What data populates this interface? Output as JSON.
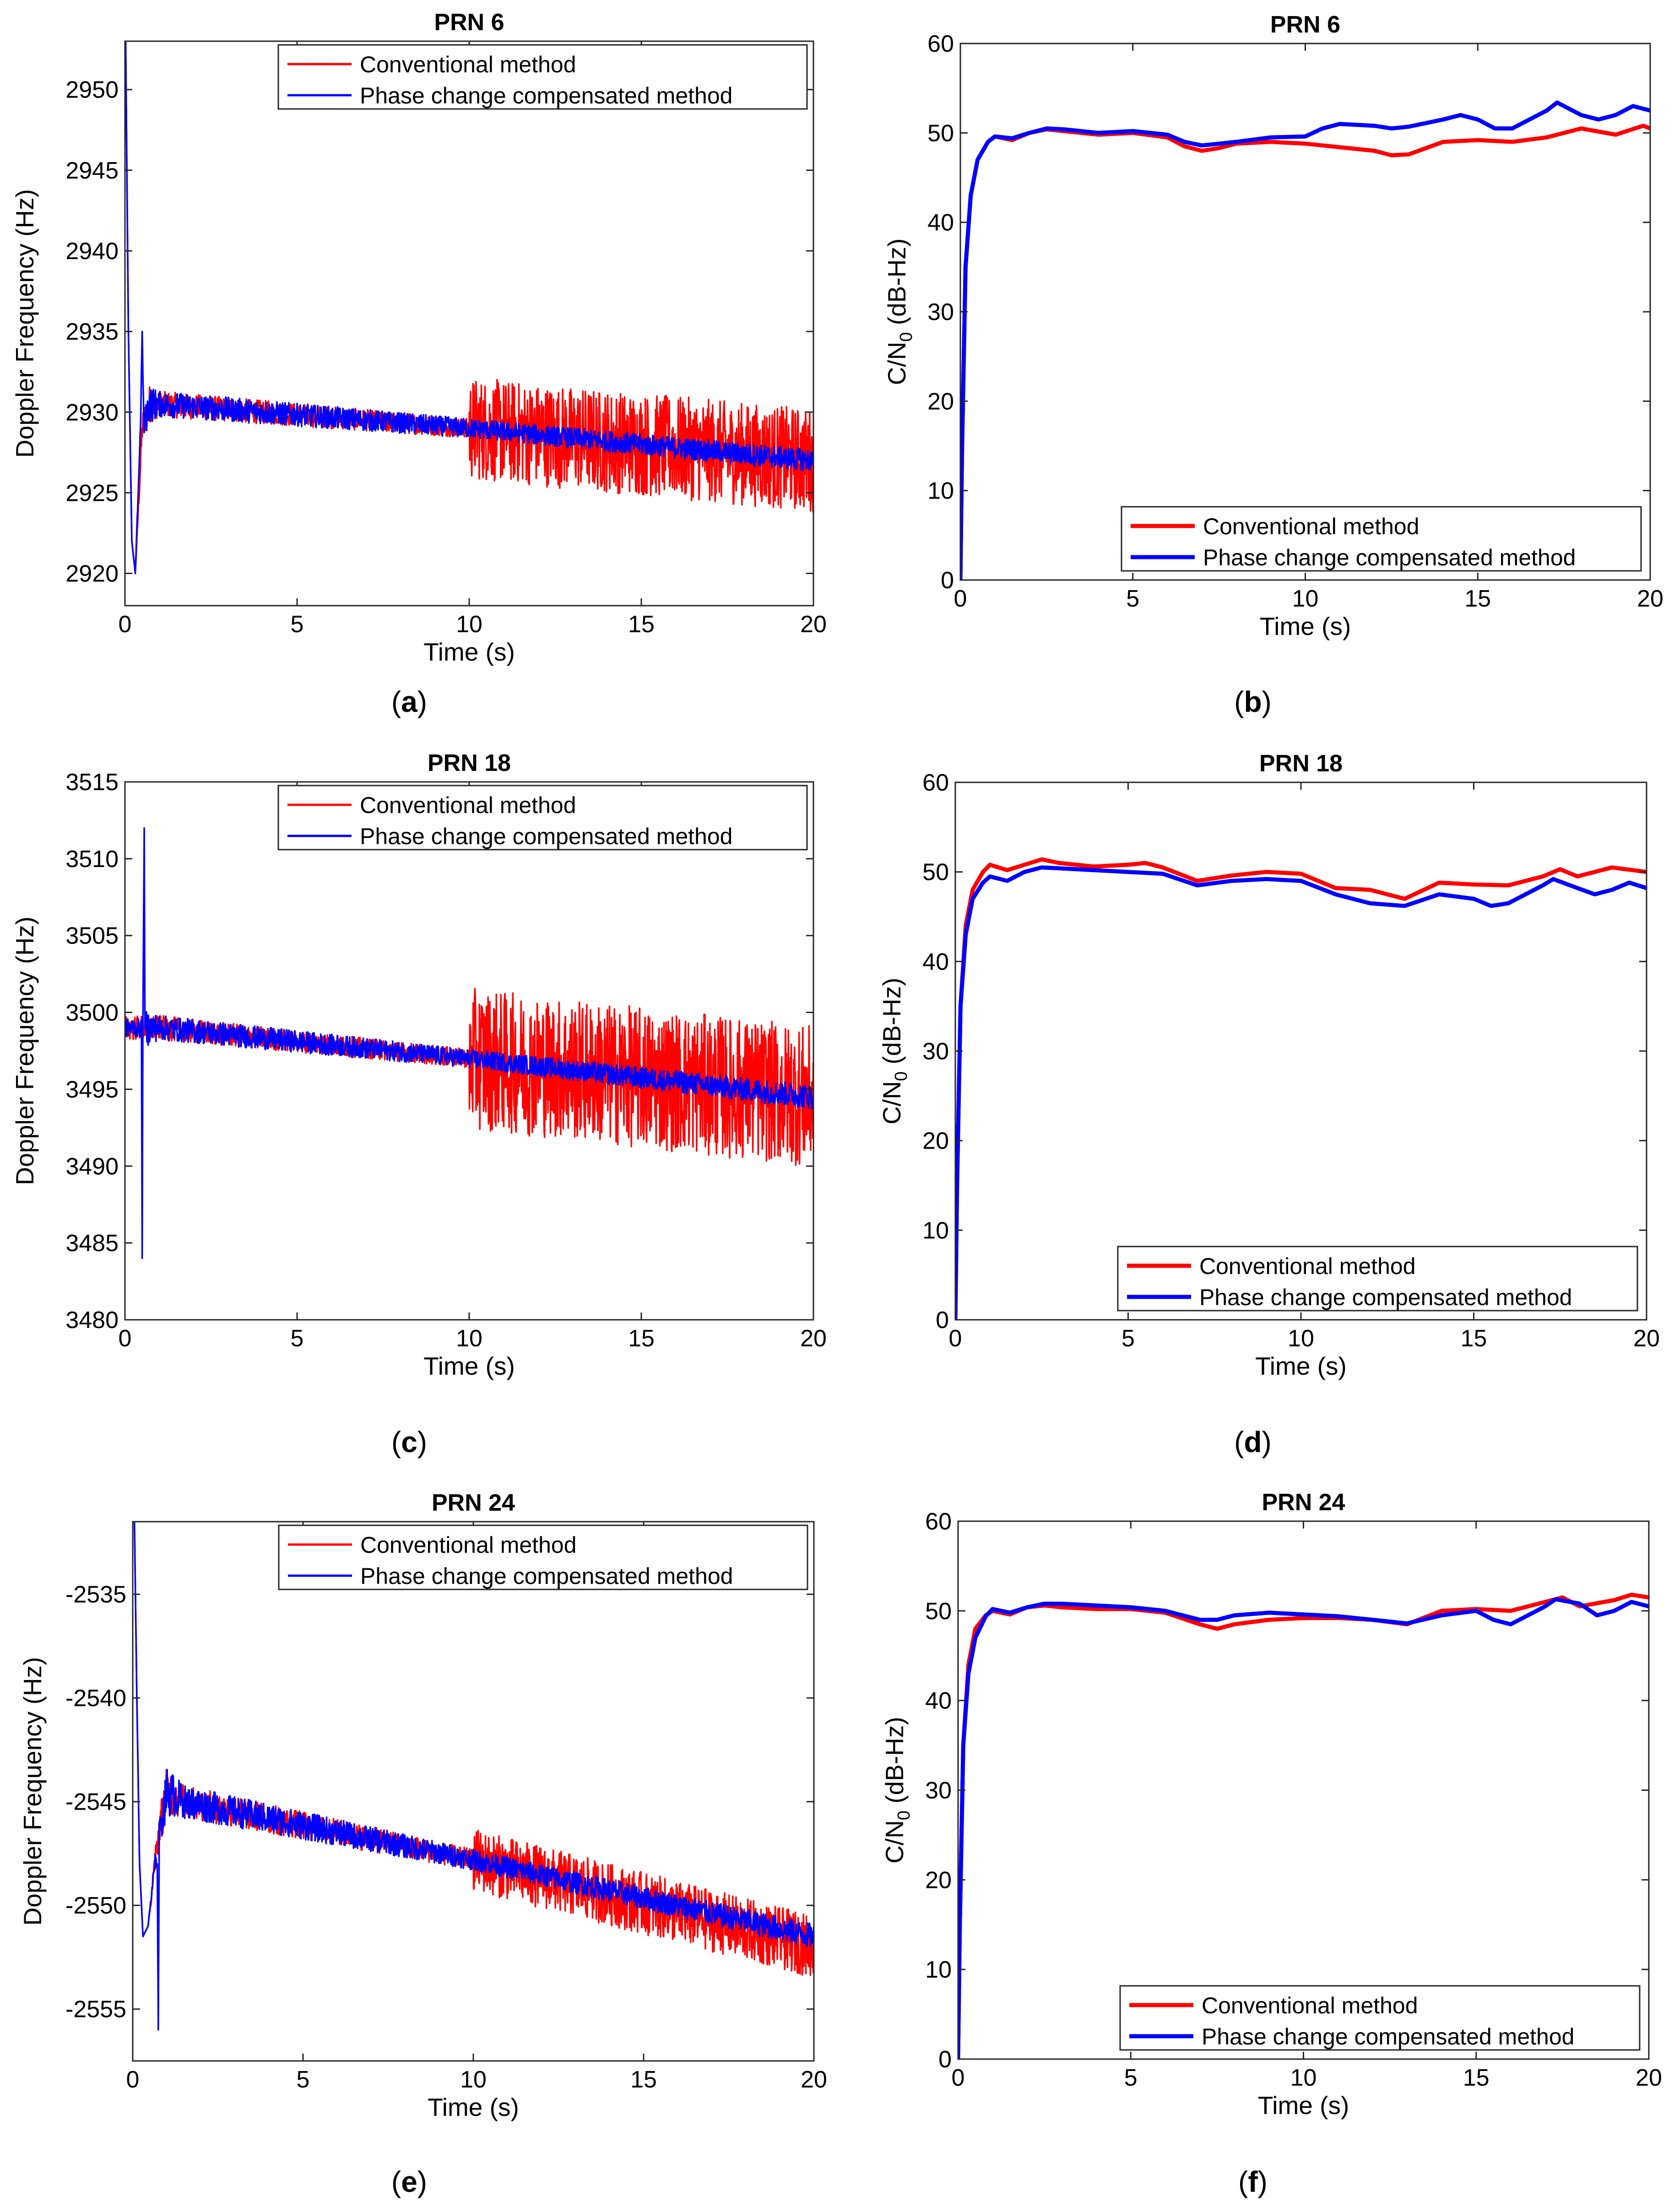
{
  "colors": {
    "conventional": "#ff0000",
    "compensated": "#0000ff",
    "axis": "#262626"
  },
  "chart_data": [
    {
      "id": "a",
      "subfigure_label": "(a)",
      "type": "line",
      "title": "PRN  6",
      "xlabel": "Time (s)",
      "ylabel": "Doppler Frequency (Hz)",
      "xlim": [
        0,
        20
      ],
      "ylim": [
        2918,
        2953
      ],
      "xticks": [
        0,
        5,
        10,
        15,
        20
      ],
      "yticks": [
        2920,
        2925,
        2930,
        2935,
        2940,
        2945,
        2950
      ],
      "legend_position": "top-right",
      "legend_style": "thin",
      "series": [
        {
          "name": "Conventional method",
          "color": "#ff0000",
          "x": [
            0.02,
            0.1,
            0.2,
            0.3,
            0.5,
            0.7,
            1.0,
            10,
            20
          ],
          "y": [
            2953,
            2935,
            2922,
            2920,
            2929,
            2930.5,
            2930.5,
            2929,
            2927
          ],
          "noise": [
            0,
            0,
            0,
            0,
            1,
            1.2,
            0.8,
            0.6,
            0.6
          ],
          "noise_after": {
            "x": 10,
            "amplitude": 3.2
          }
        },
        {
          "name": "Phase change compensated method",
          "color": "#0000ff",
          "x": [
            0.02,
            0.1,
            0.2,
            0.3,
            0.45,
            0.5,
            0.55,
            0.7,
            1.0,
            10,
            20
          ],
          "y": [
            2953,
            2935,
            2922,
            2920,
            2929,
            2935,
            2929,
            2930.5,
            2930.5,
            2929,
            2927
          ],
          "noise": [
            0,
            0,
            0,
            0,
            0.5,
            0,
            0.8,
            1.2,
            0.8,
            0.6,
            0.7
          ]
        }
      ]
    },
    {
      "id": "b",
      "subfigure_label": "(b)",
      "type": "line",
      "title": "PRN  6",
      "xlabel": "Time (s)",
      "ylabel": "C/N0 (dB-Hz)",
      "ylabel_main": "C/N",
      "ylabel_sub": "0",
      "ylabel_rest": " (dB-Hz)",
      "xlim": [
        0,
        20
      ],
      "ylim": [
        0,
        60
      ],
      "xticks": [
        0,
        5,
        10,
        15,
        20
      ],
      "yticks": [
        0,
        10,
        20,
        30,
        40,
        50,
        60
      ],
      "legend_position": "bottom-right",
      "legend_style": "thick",
      "series": [
        {
          "name": "Conventional method",
          "color": "#ff0000",
          "x": [
            0,
            0.05,
            0.15,
            0.3,
            0.5,
            0.8,
            1.0,
            1.5,
            2.0,
            2.5,
            3.0,
            4.0,
            5.0,
            6.0,
            6.5,
            7.0,
            7.5,
            8.0,
            9.0,
            10.0,
            11.0,
            12.0,
            12.5,
            13.0,
            14.0,
            15.0,
            16.0,
            17.0,
            18.0,
            19.0,
            19.8,
            20.0
          ],
          "y": [
            0,
            15,
            35,
            43,
            47,
            49,
            49.6,
            49.2,
            50,
            50.4,
            50.2,
            49.8,
            50.0,
            49.5,
            48.5,
            48.0,
            48.3,
            48.8,
            49.0,
            48.8,
            48.4,
            48.0,
            47.5,
            47.6,
            49.0,
            49.2,
            49.0,
            49.5,
            50.5,
            49.8,
            50.8,
            50.5
          ]
        },
        {
          "name": "Phase change compensated method",
          "color": "#0000ff",
          "x": [
            0,
            0.05,
            0.15,
            0.3,
            0.5,
            0.8,
            1.0,
            1.5,
            2.0,
            2.5,
            3.0,
            4.0,
            5.0,
            6.0,
            6.5,
            7.0,
            7.5,
            8.0,
            9.0,
            10.0,
            10.5,
            11.0,
            12.0,
            12.5,
            13.0,
            14.0,
            14.5,
            15.0,
            15.5,
            16.0,
            17.0,
            17.3,
            18.0,
            18.5,
            19.0,
            19.5,
            20.0
          ],
          "y": [
            0,
            15,
            35,
            43,
            47,
            49,
            49.6,
            49.4,
            50,
            50.5,
            50.4,
            50.0,
            50.2,
            49.8,
            49.0,
            48.6,
            48.8,
            49.0,
            49.5,
            49.6,
            50.5,
            51.0,
            50.8,
            50.5,
            50.7,
            51.5,
            52.0,
            51.5,
            50.5,
            50.5,
            52.5,
            53.4,
            52.0,
            51.5,
            52.0,
            53.0,
            52.5
          ]
        }
      ]
    },
    {
      "id": "c",
      "subfigure_label": "(c)",
      "type": "line",
      "title": "PRN  18",
      "xlabel": "Time (s)",
      "ylabel": "Doppler Frequency (Hz)",
      "xlim": [
        0,
        20
      ],
      "ylim": [
        3480,
        3515
      ],
      "xticks": [
        0,
        5,
        10,
        15,
        20
      ],
      "yticks": [
        3480,
        3485,
        3490,
        3495,
        3500,
        3505,
        3510,
        3515
      ],
      "legend_position": "top-right",
      "legend_style": "thin",
      "series": [
        {
          "name": "Conventional method",
          "color": "#ff0000",
          "x": [
            0,
            0.5,
            1.0,
            10,
            20
          ],
          "y": [
            3499,
            3499,
            3499,
            3497,
            3494.5
          ],
          "noise": [
            0.8,
            0.8,
            0.8,
            0.6,
            0.6
          ],
          "noise_after": {
            "x": 10,
            "amplitude": 4.6
          }
        },
        {
          "name": "Phase change compensated method",
          "color": "#0000ff",
          "x": [
            0,
            0.48,
            0.5,
            0.52,
            0.56,
            0.58,
            0.62,
            1.0,
            10,
            20
          ],
          "y": [
            3499,
            3499,
            3484,
            3499,
            3512,
            3499,
            3499,
            3499,
            3497,
            3494.5
          ],
          "noise": [
            0.6,
            0.6,
            0,
            0,
            0,
            0,
            1.2,
            0.8,
            0.6,
            0.8
          ]
        }
      ]
    },
    {
      "id": "d",
      "subfigure_label": "(d)",
      "type": "line",
      "title": "PRN  18",
      "xlabel": "Time (s)",
      "ylabel": "C/N0 (dB-Hz)",
      "ylabel_main": "C/N",
      "ylabel_sub": "0",
      "ylabel_rest": " (dB-Hz)",
      "xlim": [
        0,
        20
      ],
      "ylim": [
        0,
        60
      ],
      "xticks": [
        0,
        5,
        10,
        15,
        20
      ],
      "yticks": [
        0,
        10,
        20,
        30,
        40,
        50,
        60
      ],
      "legend_position": "bottom-right",
      "legend_style": "thick",
      "series": [
        {
          "name": "Conventional method",
          "color": "#ff0000",
          "x": [
            0,
            0.05,
            0.15,
            0.3,
            0.5,
            0.8,
            1.0,
            1.5,
            2.0,
            2.5,
            3.0,
            4.0,
            5.0,
            5.5,
            6.0,
            7.0,
            8.0,
            9.0,
            10.0,
            11.0,
            12.0,
            13.0,
            14.0,
            15.0,
            16.0,
            17.0,
            17.5,
            18.0,
            19.0,
            20.0
          ],
          "y": [
            0,
            15,
            35,
            44,
            48,
            50,
            50.8,
            50.2,
            50.8,
            51.4,
            51.0,
            50.6,
            50.8,
            51.0,
            50.5,
            49.0,
            49.6,
            50.0,
            49.8,
            48.2,
            48.0,
            47.0,
            48.8,
            48.6,
            48.5,
            49.5,
            50.3,
            49.5,
            50.5,
            50.0
          ]
        },
        {
          "name": "Phase change compensated method",
          "color": "#0000ff",
          "x": [
            0,
            0.05,
            0.15,
            0.3,
            0.5,
            0.8,
            1.0,
            1.5,
            2.0,
            2.5,
            3.0,
            4.0,
            5.0,
            6.0,
            7.0,
            8.0,
            9.0,
            10.0,
            11.0,
            12.0,
            13.0,
            14.0,
            15.0,
            15.5,
            16.0,
            17.0,
            17.3,
            18.0,
            18.5,
            19.0,
            19.5,
            20.0
          ],
          "y": [
            0,
            15,
            35,
            43,
            47,
            48.8,
            49.5,
            49.0,
            50.0,
            50.5,
            50.4,
            50.2,
            50.0,
            49.8,
            48.5,
            49.0,
            49.2,
            49.0,
            47.5,
            46.5,
            46.2,
            47.5,
            47.0,
            46.2,
            46.5,
            48.5,
            49.2,
            48.2,
            47.5,
            48.0,
            48.8,
            48.2
          ]
        }
      ]
    },
    {
      "id": "e",
      "subfigure_label": "(e)",
      "type": "line",
      "title": "PRN  24",
      "xlabel": "Time (s)",
      "ylabel": "Doppler Frequency (Hz)",
      "xlim": [
        0,
        20
      ],
      "ylim": [
        -2557.5,
        -2531.5
      ],
      "xticks": [
        0,
        5,
        10,
        15,
        20
      ],
      "yticks": [
        -2555,
        -2550,
        -2545,
        -2540,
        -2535
      ],
      "legend_position": "top-right",
      "legend_style": "thin",
      "series": [
        {
          "name": "Conventional method",
          "color": "#ff0000",
          "x": [
            0.05,
            0.12,
            0.2,
            0.3,
            0.45,
            0.65,
            0.8,
            1.0,
            1.5,
            10,
            20
          ],
          "y": [
            -2531.5,
            -2540,
            -2548,
            -2551.5,
            -2551,
            -2548,
            -2546,
            -2544.5,
            -2545,
            -2547.8,
            -2552
          ],
          "noise": [
            0,
            0,
            0,
            0,
            0,
            0.6,
            0.8,
            1.2,
            0.8,
            0.5,
            0.6
          ],
          "noise_after": {
            "x": 10,
            "amplitude": 1.5
          }
        },
        {
          "name": "Phase change compensated method",
          "color": "#0000ff",
          "x": [
            0.05,
            0.12,
            0.2,
            0.3,
            0.45,
            0.65,
            0.72,
            0.75,
            0.78,
            0.85,
            1.0,
            1.5,
            10,
            20
          ],
          "y": [
            -2531.5,
            -2540,
            -2548,
            -2551.5,
            -2551,
            -2548,
            -2548,
            -2556,
            -2546,
            -2546,
            -2544.5,
            -2545,
            -2547.8,
            -2551.5
          ],
          "noise": [
            0,
            0,
            0,
            0,
            0,
            0.6,
            0,
            0,
            0,
            0.8,
            1.2,
            0.8,
            0.5,
            0.6
          ]
        }
      ]
    },
    {
      "id": "f",
      "subfigure_label": "(f)",
      "type": "line",
      "title": "PRN  24",
      "xlabel": "Time (s)",
      "ylabel": "C/N0 (dB-Hz)",
      "ylabel_main": "C/N",
      "ylabel_sub": "0",
      "ylabel_rest": " (dB-Hz)",
      "xlim": [
        0,
        20
      ],
      "ylim": [
        0,
        60
      ],
      "xticks": [
        0,
        5,
        10,
        15,
        20
      ],
      "yticks": [
        0,
        10,
        20,
        30,
        40,
        50,
        60
      ],
      "legend_position": "bottom-right",
      "legend_style": "thick",
      "series": [
        {
          "name": "Conventional method",
          "color": "#ff0000",
          "x": [
            0,
            0.05,
            0.15,
            0.3,
            0.5,
            0.8,
            1.0,
            1.5,
            2.0,
            2.5,
            3.0,
            4.0,
            5.0,
            6.0,
            7.0,
            7.5,
            8.0,
            9.0,
            10.0,
            11.0,
            12.0,
            13.0,
            14.0,
            15.0,
            16.0,
            17.0,
            17.5,
            18.0,
            19.0,
            19.5,
            20.0
          ],
          "y": [
            0,
            15,
            35,
            44,
            48,
            49.5,
            50.0,
            49.6,
            50.4,
            50.6,
            50.4,
            50.2,
            50.2,
            49.8,
            48.5,
            48.0,
            48.5,
            49.0,
            49.2,
            49.2,
            49.0,
            48.5,
            50.0,
            50.2,
            50.0,
            51.0,
            51.5,
            50.5,
            51.2,
            51.8,
            51.5
          ]
        },
        {
          "name": "Phase change compensated method",
          "color": "#0000ff",
          "x": [
            0,
            0.05,
            0.15,
            0.3,
            0.5,
            0.8,
            1.0,
            1.5,
            2.0,
            2.5,
            3.0,
            4.0,
            5.0,
            6.0,
            7.0,
            7.5,
            8.0,
            9.0,
            10.0,
            11.0,
            12.0,
            13.0,
            14.0,
            15.0,
            15.5,
            16.0,
            17.0,
            17.3,
            18.0,
            18.5,
            19.0,
            19.5,
            20.0
          ],
          "y": [
            0,
            15,
            35,
            43,
            47,
            49.4,
            50.2,
            49.8,
            50.4,
            50.8,
            50.8,
            50.6,
            50.4,
            50.0,
            49.0,
            49.0,
            49.5,
            49.8,
            49.6,
            49.4,
            49.0,
            48.6,
            49.5,
            50.0,
            49.0,
            48.5,
            50.5,
            51.3,
            50.8,
            49.5,
            50.0,
            51.0,
            50.5
          ]
        }
      ]
    }
  ]
}
